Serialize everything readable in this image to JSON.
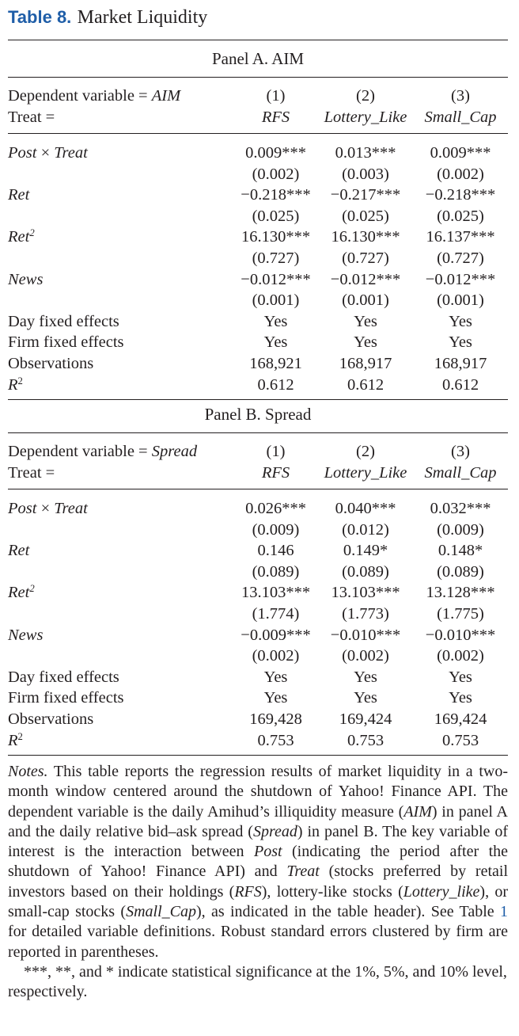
{
  "caption": {
    "label": "Table 8.",
    "title": "Market Liquidity"
  },
  "panels": [
    {
      "title": "Panel A. AIM",
      "header": {
        "dep_prefix": "Dependent variable = ",
        "dep_var": "AIM",
        "treat_label": "Treat =",
        "col_nums": [
          "(1)",
          "(2)",
          "(3)"
        ],
        "col_names": [
          "RFS",
          "Lottery_Like",
          "Small_Cap"
        ]
      },
      "rows": [
        {
          "coef_names": {
            "post": "Post",
            "times": " × ",
            "treat": "Treat"
          },
          "coef": [
            "0.009***",
            "0.013***",
            "0.009***"
          ],
          "se": [
            "(0.002)",
            "(0.003)",
            "(0.002)"
          ]
        },
        {
          "label": "Ret",
          "coef": [
            "−0.218***",
            "−0.217***",
            "−0.218***"
          ],
          "se": [
            "(0.025)",
            "(0.025)",
            "(0.025)"
          ]
        },
        {
          "label": "Ret",
          "sup": "2",
          "coef": [
            "16.130***",
            "16.130***",
            "16.137***"
          ],
          "se": [
            "(0.727)",
            "(0.727)",
            "(0.727)"
          ]
        },
        {
          "label": "News",
          "coef": [
            "−0.012***",
            "−0.012***",
            "−0.012***"
          ],
          "se": [
            "(0.001)",
            "(0.001)",
            "(0.001)"
          ]
        }
      ],
      "footer": [
        {
          "label": "Day fixed effects",
          "values": [
            "Yes",
            "Yes",
            "Yes"
          ]
        },
        {
          "label": "Firm fixed effects",
          "values": [
            "Yes",
            "Yes",
            "Yes"
          ]
        },
        {
          "label": "Observations",
          "values": [
            "168,921",
            "168,917",
            "168,917"
          ]
        },
        {
          "label": "R",
          "sup": "2",
          "values": [
            "0.612",
            "0.612",
            "0.612"
          ]
        }
      ]
    },
    {
      "title": "Panel B. Spread",
      "header": {
        "dep_prefix": "Dependent variable = ",
        "dep_var": "Spread",
        "treat_label": "Treat =",
        "col_nums": [
          "(1)",
          "(2)",
          "(3)"
        ],
        "col_names": [
          "RFS",
          "Lottery_Like",
          "Small_Cap"
        ]
      },
      "rows": [
        {
          "coef_names": {
            "post": "Post",
            "times": " × ",
            "treat": "Treat"
          },
          "coef": [
            "0.026***",
            "0.040***",
            "0.032***"
          ],
          "se": [
            "(0.009)",
            "(0.012)",
            "(0.009)"
          ]
        },
        {
          "label": "Ret",
          "coef": [
            "0.146",
            "0.149*",
            "0.148*"
          ],
          "se": [
            "(0.089)",
            "(0.089)",
            "(0.089)"
          ]
        },
        {
          "label": "Ret",
          "sup": "2",
          "coef": [
            "13.103***",
            "13.103***",
            "13.128***"
          ],
          "se": [
            "(1.774)",
            "(1.773)",
            "(1.775)"
          ]
        },
        {
          "label": "News",
          "coef": [
            "−0.009***",
            "−0.010***",
            "−0.010***"
          ],
          "se": [
            "(0.002)",
            "(0.002)",
            "(0.002)"
          ]
        }
      ],
      "footer": [
        {
          "label": "Day fixed effects",
          "values": [
            "Yes",
            "Yes",
            "Yes"
          ]
        },
        {
          "label": "Firm fixed effects",
          "values": [
            "Yes",
            "Yes",
            "Yes"
          ]
        },
        {
          "label": "Observations",
          "values": [
            "169,428",
            "169,424",
            "169,424"
          ]
        },
        {
          "label": "R",
          "sup": "2",
          "values": [
            "0.753",
            "0.753",
            "0.753"
          ]
        }
      ]
    }
  ],
  "notes": {
    "label": "Notes.",
    "p1": " This table reports the regression results of market liquidity in a two-month window centered around the shutdown of Yahoo! Finance API. The dependent variable is the daily Amihud’s illiquidity measure (",
    "aim": "AIM",
    "p2": ") in panel A and the daily relative bid–ask spread (",
    "spread": "Spread",
    "p3": ") in panel B. The key variable of interest is the interaction between ",
    "post": "Post",
    "p4": " (indicating the period after the shutdown of Yahoo! Finance API) and ",
    "treat": "Treat",
    "p5": " (stocks preferred by retail investors based on their holdings (",
    "rfs": "RFS",
    "p6": "), lottery-like stocks (",
    "lottery": "Lottery_like",
    "p7": "), or small-cap stocks (",
    "smallcap": "Small_Cap",
    "p8": "), as indicated in the table header). See Table ",
    "table_link": "1",
    "p9": " for detailed variable definitions. Robust standard errors clustered by firm are reported in parentheses.",
    "legend": "***, **, and * indicate statistical significance at the 1%, 5%, and 10% level, respectively."
  }
}
